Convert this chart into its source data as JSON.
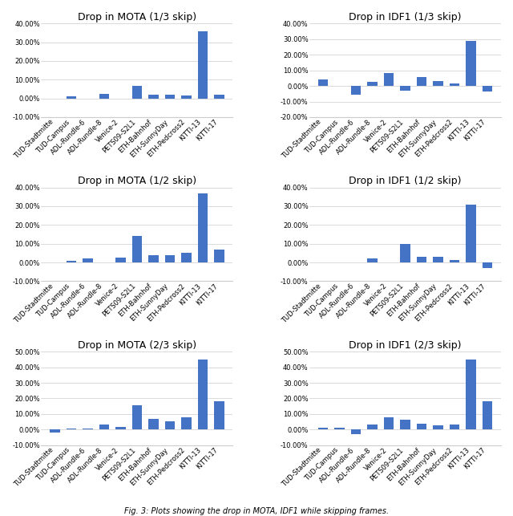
{
  "categories": [
    "TUD-Stadtmitte",
    "TUD-Campus",
    "ADL-Rundle-6",
    "ADL-Rundle-8",
    "Venice-2",
    "PETS09-S2L1",
    "ETH-Bahnhof",
    "ETH-SunnyDay",
    "ETH-Pedcross2",
    "KITTI-13",
    "KITTI-17"
  ],
  "mota_13skip": [
    0.0,
    1.0,
    0.0,
    2.5,
    0.0,
    6.5,
    2.0,
    2.0,
    1.5,
    36.0,
    2.0
  ],
  "idf1_13skip": [
    4.0,
    0.0,
    -5.5,
    2.5,
    8.5,
    -3.0,
    5.5,
    3.0,
    1.5,
    29.0,
    -3.5
  ],
  "mota_12skip": [
    0.0,
    1.0,
    2.0,
    0.0,
    2.5,
    14.0,
    4.0,
    4.0,
    5.0,
    37.0,
    7.0
  ],
  "idf1_12skip": [
    0.0,
    0.0,
    0.0,
    2.0,
    0.0,
    10.0,
    3.0,
    3.0,
    1.5,
    31.0,
    -3.0
  ],
  "mota_23skip": [
    -2.0,
    0.5,
    0.5,
    3.5,
    2.0,
    15.5,
    7.0,
    5.5,
    8.0,
    45.0,
    18.0
  ],
  "idf1_23skip": [
    1.5,
    1.0,
    -3.0,
    3.5,
    8.0,
    6.5,
    4.0,
    3.0,
    3.5,
    45.0,
    18.0
  ],
  "ylims": {
    "mota_13skip": [
      -10,
      40
    ],
    "idf1_13skip": [
      -20,
      40
    ],
    "mota_12skip": [
      -10,
      40
    ],
    "idf1_12skip": [
      -10,
      40
    ],
    "mota_23skip": [
      -10,
      50
    ],
    "idf1_23skip": [
      -10,
      50
    ]
  },
  "yticks": {
    "mota_13skip": [
      -10,
      0,
      10,
      20,
      30,
      40
    ],
    "idf1_13skip": [
      -20,
      -10,
      0,
      10,
      20,
      30,
      40
    ],
    "mota_12skip": [
      -10,
      0,
      10,
      20,
      30,
      40
    ],
    "idf1_12skip": [
      -10,
      0,
      10,
      20,
      30,
      40
    ],
    "mota_23skip": [
      -10,
      0,
      10,
      20,
      30,
      40,
      50
    ],
    "idf1_23skip": [
      -10,
      0,
      10,
      20,
      30,
      40,
      50
    ]
  },
  "bar_color": "#4472C4",
  "background_color": "#FFFFFF",
  "title_fontsize": 9,
  "tick_fontsize": 6.0,
  "caption": "Fig. 3: Plots showing the drop in MOTA, IDF1 while skipping frames."
}
